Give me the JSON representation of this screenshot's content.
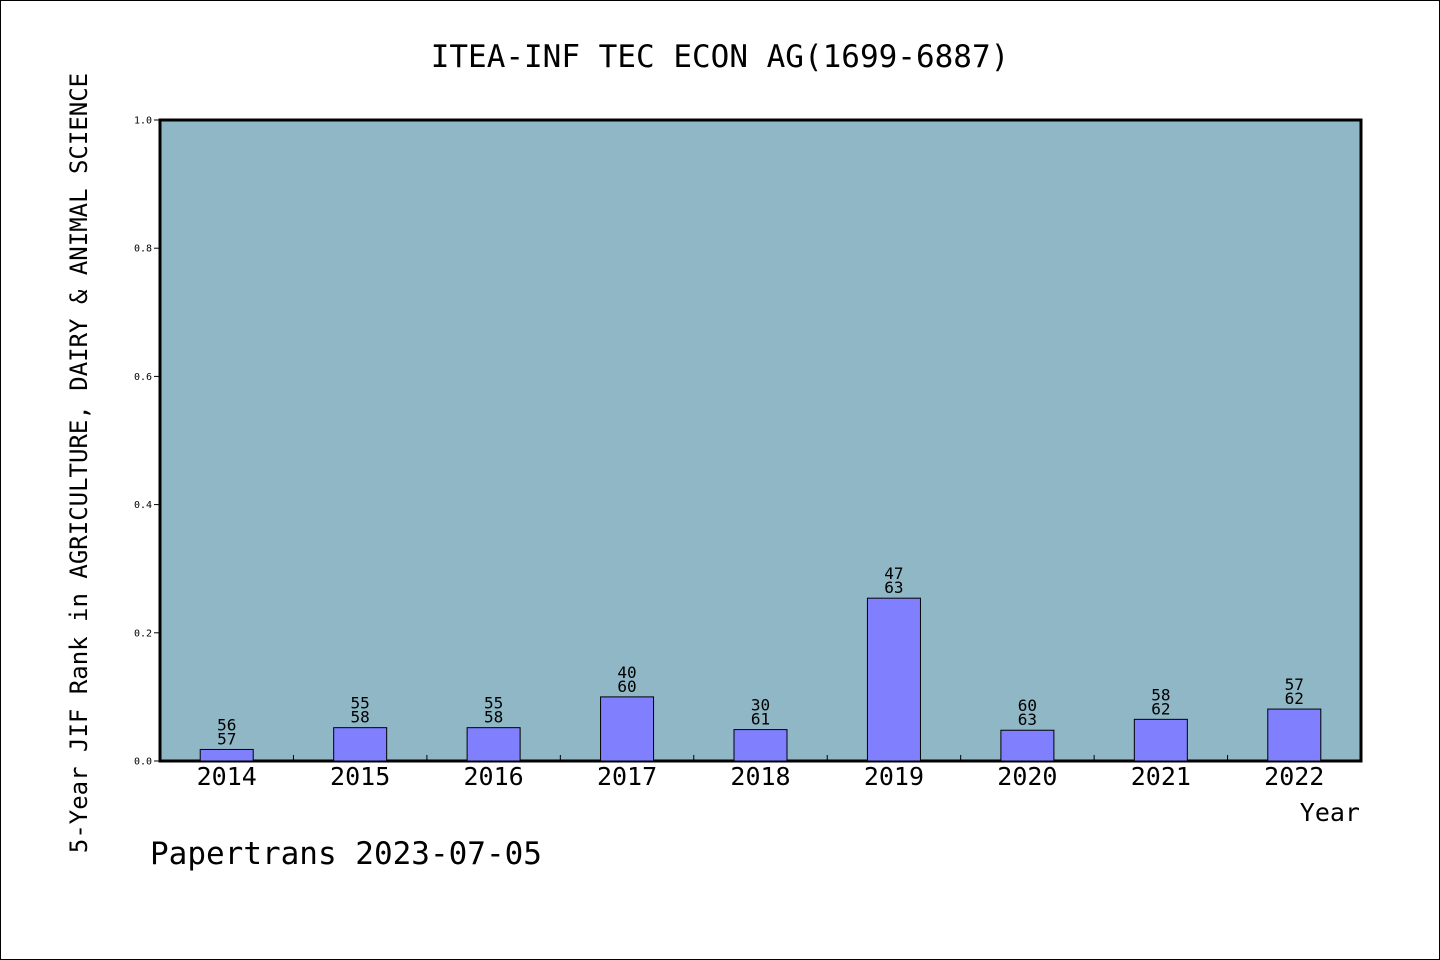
{
  "chart_data": {
    "type": "bar",
    "title": "ITEA-INF TEC ECON AG(1699-6887)",
    "xlabel": "Year",
    "ylabel": "5-Year JIF Rank in AGRICULTURE, DAIRY & ANIMAL SCIENCE",
    "ylim": [
      0,
      1.0
    ],
    "yticks": [
      "0.0",
      "0.2",
      "0.4",
      "0.6",
      "0.8",
      "1.0"
    ],
    "categories": [
      "2014",
      "2015",
      "2016",
      "2017",
      "2018",
      "2019",
      "2020",
      "2021",
      "2022"
    ],
    "values": [
      0.018,
      0.052,
      0.052,
      0.1,
      0.049,
      0.254,
      0.048,
      0.065,
      0.081
    ],
    "rank_labels": [
      "56",
      "55",
      "55",
      "40",
      "30",
      "47",
      "60",
      "58",
      "57"
    ],
    "total_labels": [
      "57",
      "58",
      "58",
      "60",
      "61",
      "63",
      "63",
      "62",
      "62"
    ],
    "grid": false,
    "colors": {
      "plot_bg": "#8fb7c5",
      "bar_fill": "#8080ff",
      "bar_stroke": "#000000"
    }
  },
  "footer": {
    "text": "Papertrans 2023-07-05"
  }
}
